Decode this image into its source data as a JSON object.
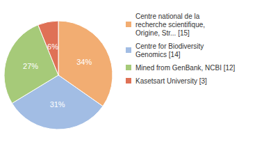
{
  "chart_data": {
    "type": "pie",
    "categories": [
      "Centre national de la\nrecherche scientifique,\nOrigine, Str... [15]",
      "Centre for Biodiversity\nGenomics [14]",
      "Mined from GenBank, NCBI [12]",
      "Kasetsart University [3]"
    ],
    "values": [
      34,
      31,
      27,
      6
    ],
    "value_labels": [
      "34%",
      "31%",
      "27%",
      "6%"
    ],
    "colors": [
      "#f2ad72",
      "#a2bde4",
      "#a6ca79",
      "#df7156"
    ],
    "data_labels": true,
    "legend": "right"
  }
}
